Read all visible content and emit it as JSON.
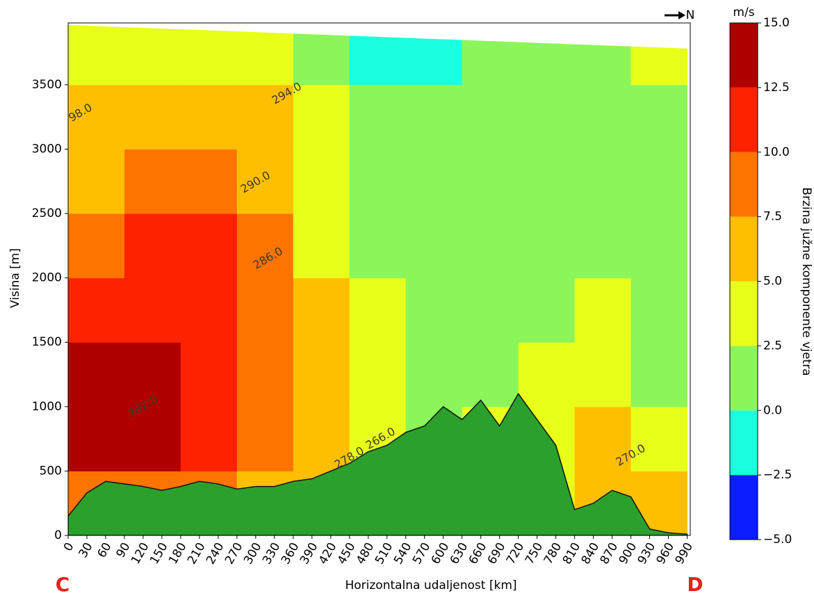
{
  "chart_data": {
    "type": "contourf",
    "xlabel": "Horizontalna udaljenost [km]",
    "ylabel": "Visina [m]",
    "xlim": [
      0,
      995
    ],
    "ylim": [
      0,
      3980
    ],
    "xticks": [
      0,
      30,
      60,
      90,
      120,
      150,
      180,
      210,
      240,
      270,
      300,
      330,
      360,
      390,
      420,
      450,
      480,
      510,
      540,
      570,
      600,
      630,
      660,
      690,
      720,
      750,
      780,
      810,
      840,
      870,
      900,
      930,
      960,
      990
    ],
    "yticks": [
      0,
      500,
      1000,
      1500,
      2000,
      2500,
      3000,
      3500
    ],
    "field_x": [
      0,
      90,
      180,
      270,
      360,
      450,
      540,
      630,
      720,
      810,
      900,
      990
    ],
    "field_y": [
      0,
      500,
      1000,
      1500,
      2000,
      2500,
      3000,
      3500,
      4000
    ],
    "field": [
      [
        8,
        13,
        13,
        11,
        9,
        7,
        5,
        3
      ],
      [
        9,
        13,
        13,
        11,
        10,
        8,
        6,
        4
      ],
      [
        8,
        12,
        11,
        11,
        10,
        8,
        6,
        4
      ],
      [
        6,
        9,
        9,
        8,
        8,
        7,
        6,
        3
      ],
      [
        5,
        6,
        5,
        5,
        4,
        4,
        3,
        1
      ],
      [
        4,
        4,
        3,
        3,
        2,
        2,
        1,
        -1
      ],
      [
        1,
        2,
        1,
        2,
        2,
        1,
        1,
        -1
      ],
      [
        2,
        3,
        2,
        2,
        2,
        2,
        1,
        1
      ],
      [
        4,
        4,
        3,
        2,
        2,
        2,
        1,
        1
      ],
      [
        6,
        6,
        4,
        3,
        2,
        2,
        1,
        1
      ],
      [
        6,
        3,
        2,
        1,
        1,
        1,
        1,
        3
      ]
    ],
    "terrain": {
      "color": "#2ca02c",
      "x": [
        0,
        30,
        60,
        90,
        120,
        150,
        180,
        210,
        240,
        270,
        300,
        330,
        360,
        390,
        420,
        450,
        480,
        510,
        540,
        570,
        600,
        630,
        660,
        690,
        720,
        750,
        780,
        810,
        840,
        870,
        900,
        930,
        960,
        990
      ],
      "values": [
        150,
        330,
        420,
        400,
        380,
        350,
        380,
        420,
        400,
        360,
        380,
        380,
        420,
        440,
        500,
        560,
        650,
        700,
        800,
        850,
        1000,
        900,
        1050,
        850,
        1100,
        900,
        700,
        200,
        250,
        350,
        300,
        50,
        20,
        10
      ]
    },
    "annotations": [
      {
        "text": "294.0",
        "x": 350,
        "y": 3430
      },
      {
        "text": "290.0",
        "x": 300,
        "y": 2740
      },
      {
        "text": "286.0",
        "x": 320,
        "y": 2150
      },
      {
        "text": "282.0",
        "x": 120,
        "y": 1000
      },
      {
        "text": "278.0",
        "x": 450,
        "y": 600
      },
      {
        "text": "266.0",
        "x": 500,
        "y": 750
      },
      {
        "text": "270.0",
        "x": 900,
        "y": 620
      },
      {
        "text": "98.0",
        "x": 20,
        "y": 3280
      }
    ],
    "north": "N",
    "left_end": "C",
    "right_end": "D",
    "colorbar": {
      "unit": "m/s",
      "label": "Brzina južne komponente vjetra",
      "lim": [
        -5,
        15
      ],
      "levels": [
        -5,
        -2.5,
        0,
        2.5,
        5,
        7.5,
        10,
        12.5,
        15
      ],
      "colors": [
        "#0a1eff",
        "#1affe0",
        "#8cf55a",
        "#e8ff1a",
        "#ffbf00",
        "#ff7300",
        "#ff2200",
        "#b00000"
      ],
      "ticks": [
        {
          "value": -5,
          "label": "−5.0"
        },
        {
          "value": -2.5,
          "label": "−2.5"
        },
        {
          "value": 0,
          "label": "0.0"
        },
        {
          "value": 2.5,
          "label": "2.5"
        },
        {
          "value": 5,
          "label": "5.0"
        },
        {
          "value": 7.5,
          "label": "7.5"
        },
        {
          "value": 10,
          "label": "10.0"
        },
        {
          "value": 12.5,
          "label": "12.5"
        },
        {
          "value": 15,
          "label": "15.0"
        }
      ]
    }
  }
}
